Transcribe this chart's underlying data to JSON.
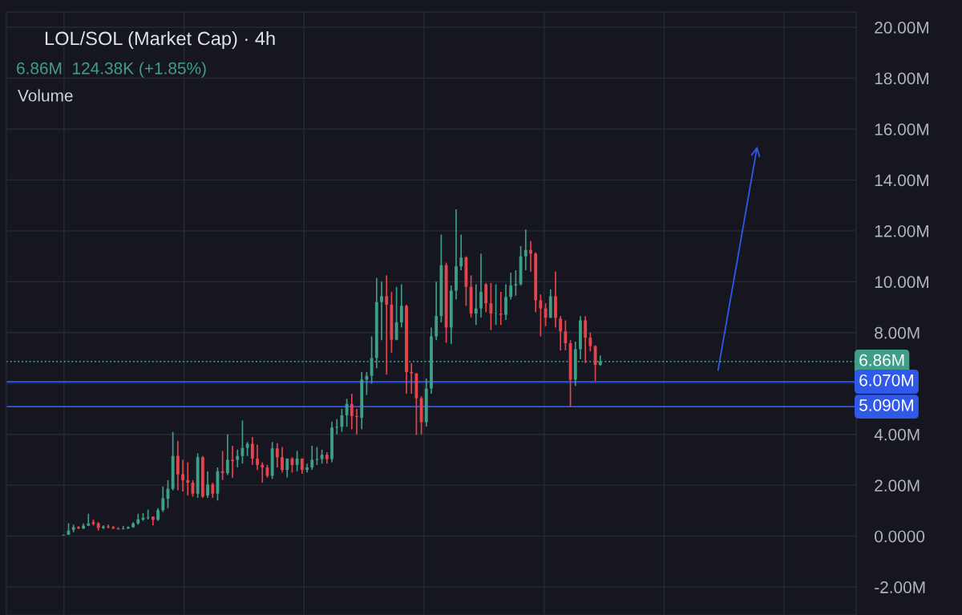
{
  "chart_data": {
    "type": "candlestick",
    "title": "LOL/SOL (Market Cap) · 4h",
    "annotations": [
      "6.86M  124.38K (+1.85%)",
      "Volume"
    ],
    "categories": [
      null,
      null,
      null,
      null,
      null,
      null,
      null,
      null,
      null,
      null,
      null,
      null,
      null,
      null,
      null,
      null,
      null,
      null,
      null,
      null,
      null,
      null,
      null,
      null,
      null,
      null,
      null,
      null,
      null,
      null,
      null,
      null,
      null,
      null,
      null,
      null,
      null,
      null,
      null,
      null,
      null,
      null,
      null,
      null,
      null,
      null,
      null,
      null,
      null,
      null,
      null,
      null,
      null,
      null,
      null,
      null,
      null,
      null,
      null,
      null,
      null,
      null,
      null,
      null,
      null,
      null,
      null,
      null,
      null,
      null,
      null,
      null,
      null,
      null,
      null,
      null,
      null,
      null,
      null,
      null,
      null,
      null,
      null,
      null,
      null,
      null,
      null,
      null,
      null,
      null,
      null,
      null,
      null,
      null,
      null,
      null,
      null,
      null,
      null,
      null,
      null,
      null,
      null,
      null,
      null,
      null,
      null,
      null,
      null,
      null,
      null,
      null,
      null,
      null,
      null,
      null,
      null,
      null,
      null,
      null,
      null,
      null,
      null,
      null,
      null,
      null,
      null,
      null,
      null,
      null,
      null,
      null,
      null,
      null,
      null,
      null,
      null,
      null,
      null,
      null,
      null,
      null,
      null,
      null,
      null,
      null,
      null,
      null,
      null,
      null,
      null,
      null,
      null,
      null,
      null,
      null,
      null,
      null,
      null,
      null,
      null,
      null,
      null,
      null,
      null,
      null,
      null,
      null,
      null,
      null,
      null
    ],
    "ohlc": [
      null,
      null,
      null,
      null,
      null,
      null,
      null,
      null,
      null,
      null,
      null,
      [
        0.03,
        0.06,
        0.02,
        0.05
      ],
      [
        0.05,
        0.51,
        0.05,
        0.22
      ],
      [
        0.25,
        0.45,
        0.15,
        0.35
      ],
      [
        0.35,
        0.4,
        0.28,
        0.3
      ],
      [
        0.3,
        0.5,
        0.28,
        0.41
      ],
      [
        0.41,
        0.88,
        0.4,
        0.5
      ],
      [
        0.55,
        0.65,
        0.42,
        0.48
      ],
      [
        0.5,
        0.55,
        0.22,
        0.32
      ],
      [
        0.32,
        0.42,
        0.28,
        0.38
      ],
      [
        0.38,
        0.45,
        0.3,
        0.35
      ],
      [
        0.35,
        0.4,
        0.28,
        0.3
      ],
      [
        0.3,
        0.35,
        0.25,
        0.27
      ],
      [
        0.28,
        0.4,
        0.26,
        0.3
      ],
      [
        0.3,
        0.38,
        0.28,
        0.35
      ],
      [
        0.35,
        0.55,
        0.33,
        0.5
      ],
      [
        0.5,
        0.88,
        0.45,
        0.66
      ],
      [
        0.65,
        0.9,
        0.6,
        0.72
      ],
      [
        0.72,
        1.04,
        0.65,
        0.75
      ],
      [
        0.76,
        0.78,
        0.42,
        0.64
      ],
      [
        0.64,
        1.1,
        0.6,
        1.02
      ],
      [
        1.02,
        1.95,
        0.95,
        1.49
      ],
      [
        1.47,
        2.2,
        1.1,
        1.86
      ],
      [
        1.86,
        4.1,
        1.8,
        3.15
      ],
      [
        3.15,
        3.75,
        1.8,
        2.43
      ],
      [
        2.43,
        3.0,
        1.75,
        2.2
      ],
      [
        2.2,
        2.9,
        1.6,
        2.1
      ],
      [
        2.1,
        2.2,
        1.55,
        1.67
      ],
      [
        1.67,
        3.25,
        1.5,
        3.1
      ],
      [
        3.1,
        3.15,
        1.5,
        1.55
      ],
      [
        1.6,
        2.55,
        1.5,
        2.03
      ],
      [
        2.03,
        2.1,
        1.5,
        1.67
      ],
      [
        1.67,
        2.7,
        1.4,
        2.55
      ],
      [
        2.55,
        3.35,
        2.2,
        2.48
      ],
      [
        2.48,
        4.0,
        2.4,
        3.0
      ],
      [
        3.0,
        3.55,
        2.3,
        2.95
      ],
      [
        3.0,
        3.4,
        2.7,
        3.15
      ],
      [
        3.15,
        4.55,
        2.85,
        3.47
      ],
      [
        3.47,
        3.7,
        3.15,
        3.63
      ],
      [
        3.63,
        3.9,
        2.8,
        3.05
      ],
      [
        3.05,
        3.6,
        2.6,
        2.8
      ],
      [
        2.8,
        2.9,
        2.1,
        2.7
      ],
      [
        2.7,
        2.8,
        2.3,
        2.37
      ],
      [
        2.37,
        3.7,
        2.25,
        3.45
      ],
      [
        3.45,
        3.65,
        2.7,
        3.1
      ],
      [
        3.1,
        3.5,
        2.5,
        2.6
      ],
      [
        2.6,
        3.05,
        2.3,
        3.05
      ],
      [
        3.05,
        3.1,
        2.5,
        2.8
      ],
      [
        2.8,
        3.35,
        2.55,
        3.05
      ],
      [
        3.05,
        3.05,
        2.45,
        2.6
      ],
      [
        2.6,
        2.85,
        2.5,
        2.7
      ],
      [
        2.7,
        3.55,
        2.6,
        3.0
      ],
      [
        3.0,
        3.5,
        2.8,
        3.03
      ],
      [
        3.03,
        3.4,
        2.85,
        3.2
      ],
      [
        3.2,
        3.3,
        2.85,
        3.03
      ],
      [
        3.03,
        4.5,
        2.9,
        4.27
      ],
      [
        4.27,
        4.6,
        4.0,
        4.3
      ],
      [
        4.3,
        5.0,
        4.1,
        4.75
      ],
      [
        4.75,
        5.4,
        4.3,
        5.2
      ],
      [
        5.2,
        5.6,
        4.2,
        4.72
      ],
      [
        4.72,
        5.0,
        4.0,
        4.68
      ],
      [
        4.65,
        6.45,
        4.2,
        6.15
      ],
      [
        6.15,
        6.45,
        5.55,
        6.3
      ],
      [
        6.3,
        7.85,
        6.0,
        7.0
      ],
      [
        7.0,
        10.15,
        6.6,
        9.2
      ],
      [
        9.2,
        10.0,
        7.7,
        9.43
      ],
      [
        9.43,
        10.25,
        6.35,
        9.1
      ],
      [
        9.1,
        9.6,
        7.2,
        7.72
      ],
      [
        7.72,
        9.8,
        7.7,
        8.4
      ],
      [
        8.4,
        9.9,
        8.2,
        9.05
      ],
      [
        9.05,
        9.1,
        5.6,
        6.45
      ],
      [
        6.45,
        6.8,
        5.6,
        6.4
      ],
      [
        6.4,
        6.4,
        3.98,
        5.42
      ],
      [
        5.42,
        5.5,
        4.0,
        4.48
      ],
      [
        4.48,
        6.2,
        4.3,
        5.8
      ],
      [
        5.8,
        8.2,
        5.6,
        7.85
      ],
      [
        7.85,
        10.0,
        7.7,
        8.65
      ],
      [
        8.65,
        11.85,
        8.4,
        10.65
      ],
      [
        10.65,
        10.75,
        7.6,
        8.2
      ],
      [
        8.2,
        9.85,
        7.55,
        9.65
      ],
      [
        9.65,
        12.85,
        9.3,
        10.6
      ],
      [
        10.6,
        11.85,
        10.45,
        10.95
      ],
      [
        10.95,
        11.0,
        9.05,
        9.8
      ],
      [
        9.8,
        10.25,
        8.6,
        8.75
      ],
      [
        8.75,
        9.9,
        8.3,
        8.95
      ],
      [
        8.95,
        11.1,
        8.6,
        9.6
      ],
      [
        9.9,
        9.95,
        8.8,
        9.15
      ],
      [
        9.15,
        9.95,
        8.1,
        8.75
      ],
      [
        8.75,
        9.9,
        8.3,
        8.76
      ],
      [
        8.75,
        9.6,
        8.3,
        8.7
      ],
      [
        8.7,
        9.9,
        8.5,
        9.4
      ],
      [
        9.4,
        10.35,
        9.3,
        9.85
      ],
      [
        9.85,
        10.45,
        9.45,
        9.9
      ],
      [
        9.9,
        11.4,
        9.85,
        11.0
      ],
      [
        11.0,
        12.05,
        10.45,
        11.25
      ],
      [
        11.25,
        11.6,
        10.4,
        11.1
      ],
      [
        11.1,
        11.15,
        8.8,
        9.27
      ],
      [
        9.27,
        9.5,
        7.85,
        8.95
      ],
      [
        8.95,
        9.15,
        8.25,
        8.58
      ],
      [
        8.58,
        9.7,
        8.58,
        9.43
      ],
      [
        9.43,
        10.4,
        8.2,
        8.58
      ],
      [
        8.55,
        8.65,
        7.3,
        8.05
      ],
      [
        8.05,
        8.48,
        7.3,
        7.58
      ],
      [
        7.58,
        7.7,
        5.09,
        6.15
      ],
      [
        6.15,
        7.65,
        5.9,
        7.35
      ],
      [
        7.35,
        8.65,
        6.95,
        8.48
      ],
      [
        8.48,
        8.65,
        6.8,
        7.8
      ],
      [
        7.8,
        8.0,
        7.26,
        7.47
      ],
      [
        7.47,
        7.5,
        6.1,
        6.73
      ],
      [
        6.73,
        7.1,
        6.7,
        6.86
      ],
      null,
      null,
      null,
      null,
      null,
      null,
      null,
      null,
      null,
      null,
      null,
      null,
      null,
      null,
      null,
      null,
      null,
      null,
      null,
      null,
      null,
      null,
      null,
      null,
      null,
      null,
      null,
      null,
      null,
      null,
      null,
      null,
      null,
      null,
      null,
      null,
      null,
      null,
      null,
      null,
      null,
      null,
      null,
      null,
      null,
      null,
      null,
      null,
      null,
      null,
      null
    ],
    "ylim": [
      -3.1,
      20.6
    ],
    "yticks": [
      {
        "value": -2,
        "label": "-2.00M"
      },
      {
        "value": 0,
        "label": "0.0000"
      },
      {
        "value": 2,
        "label": "2.00M"
      },
      {
        "value": 4,
        "label": "4.00M"
      },
      {
        "value": 6,
        "label": null
      },
      {
        "value": 8,
        "label": "8.00M"
      },
      {
        "value": 10,
        "label": "10.00M"
      },
      {
        "value": 12,
        "label": "12.00M"
      },
      {
        "value": 14,
        "label": "14.00M"
      },
      {
        "value": 16,
        "label": "16.00M"
      },
      {
        "value": 18,
        "label": "18.00M"
      },
      {
        "value": 20,
        "label": "20.00M"
      }
    ],
    "ref_lines": [
      {
        "axis": "y",
        "value": 6.86,
        "label": "6.86M",
        "color": "#3e9e86",
        "line_style": "dotted"
      },
      {
        "axis": "y",
        "value": 6.07,
        "label": "6.070M",
        "color": "#3059e8",
        "line_style": "solid"
      },
      {
        "axis": "y",
        "value": 5.09,
        "label": "5.090M",
        "color": "#3059e8",
        "line_style": "solid"
      }
    ],
    "grid": true
  }
}
